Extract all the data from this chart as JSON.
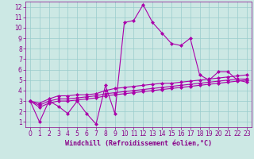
{
  "xlabel": "Windchill (Refroidissement éolien,°C)",
  "background_color": "#cce8e4",
  "line_color": "#aa00aa",
  "grid_color": "#99cccc",
  "xlim": [
    -0.5,
    23.5
  ],
  "ylim": [
    0.5,
    12.5
  ],
  "yticks": [
    1,
    2,
    3,
    4,
    5,
    6,
    7,
    8,
    9,
    10,
    11,
    12
  ],
  "xticks": [
    0,
    1,
    2,
    3,
    4,
    5,
    6,
    7,
    8,
    9,
    10,
    11,
    12,
    13,
    14,
    15,
    16,
    17,
    18,
    19,
    20,
    21,
    22,
    23
  ],
  "line1_x": [
    0,
    1,
    2,
    3,
    4,
    5,
    6,
    7,
    8,
    9,
    10,
    11,
    12,
    13,
    14,
    15,
    16,
    17,
    18,
    19,
    20,
    21,
    22,
    23
  ],
  "line1_y": [
    3.0,
    1.0,
    3.0,
    2.5,
    1.8,
    3.0,
    1.8,
    0.8,
    4.5,
    1.8,
    10.5,
    10.7,
    12.2,
    10.5,
    9.5,
    8.5,
    8.3,
    9.0,
    5.5,
    5.0,
    5.8,
    5.8,
    5.0,
    4.8
  ],
  "line2_x": [
    0,
    1,
    2,
    3,
    4,
    5,
    6,
    7,
    8,
    9,
    10,
    11,
    12,
    13,
    14,
    15,
    16,
    17,
    18,
    19,
    20,
    21,
    22,
    23
  ],
  "line2_y": [
    3.0,
    2.8,
    3.2,
    3.5,
    3.5,
    3.6,
    3.6,
    3.7,
    4.0,
    4.2,
    4.3,
    4.4,
    4.5,
    4.6,
    4.7,
    4.7,
    4.8,
    4.9,
    5.0,
    5.1,
    5.2,
    5.3,
    5.4,
    5.5
  ],
  "line3_x": [
    0,
    1,
    2,
    3,
    4,
    5,
    6,
    7,
    8,
    9,
    10,
    11,
    12,
    13,
    14,
    15,
    16,
    17,
    18,
    19,
    20,
    21,
    22,
    23
  ],
  "line3_y": [
    3.0,
    2.6,
    3.0,
    3.2,
    3.2,
    3.3,
    3.4,
    3.5,
    3.7,
    3.8,
    3.9,
    4.0,
    4.1,
    4.2,
    4.3,
    4.4,
    4.5,
    4.6,
    4.7,
    4.8,
    4.9,
    5.0,
    5.1,
    5.1
  ],
  "line4_x": [
    0,
    1,
    2,
    3,
    4,
    5,
    6,
    7,
    8,
    9,
    10,
    11,
    12,
    13,
    14,
    15,
    16,
    17,
    18,
    19,
    20,
    21,
    22,
    23
  ],
  "line4_y": [
    3.0,
    2.4,
    2.8,
    3.0,
    3.0,
    3.1,
    3.2,
    3.3,
    3.5,
    3.6,
    3.7,
    3.8,
    3.9,
    4.0,
    4.1,
    4.2,
    4.3,
    4.4,
    4.5,
    4.6,
    4.7,
    4.8,
    4.9,
    5.0
  ],
  "marker": "D",
  "markersize": 2.0,
  "linewidth": 0.8,
  "xlabel_fontsize": 6.0,
  "tick_fontsize": 5.5,
  "tick_color": "#880088",
  "spine_color": "#880088"
}
